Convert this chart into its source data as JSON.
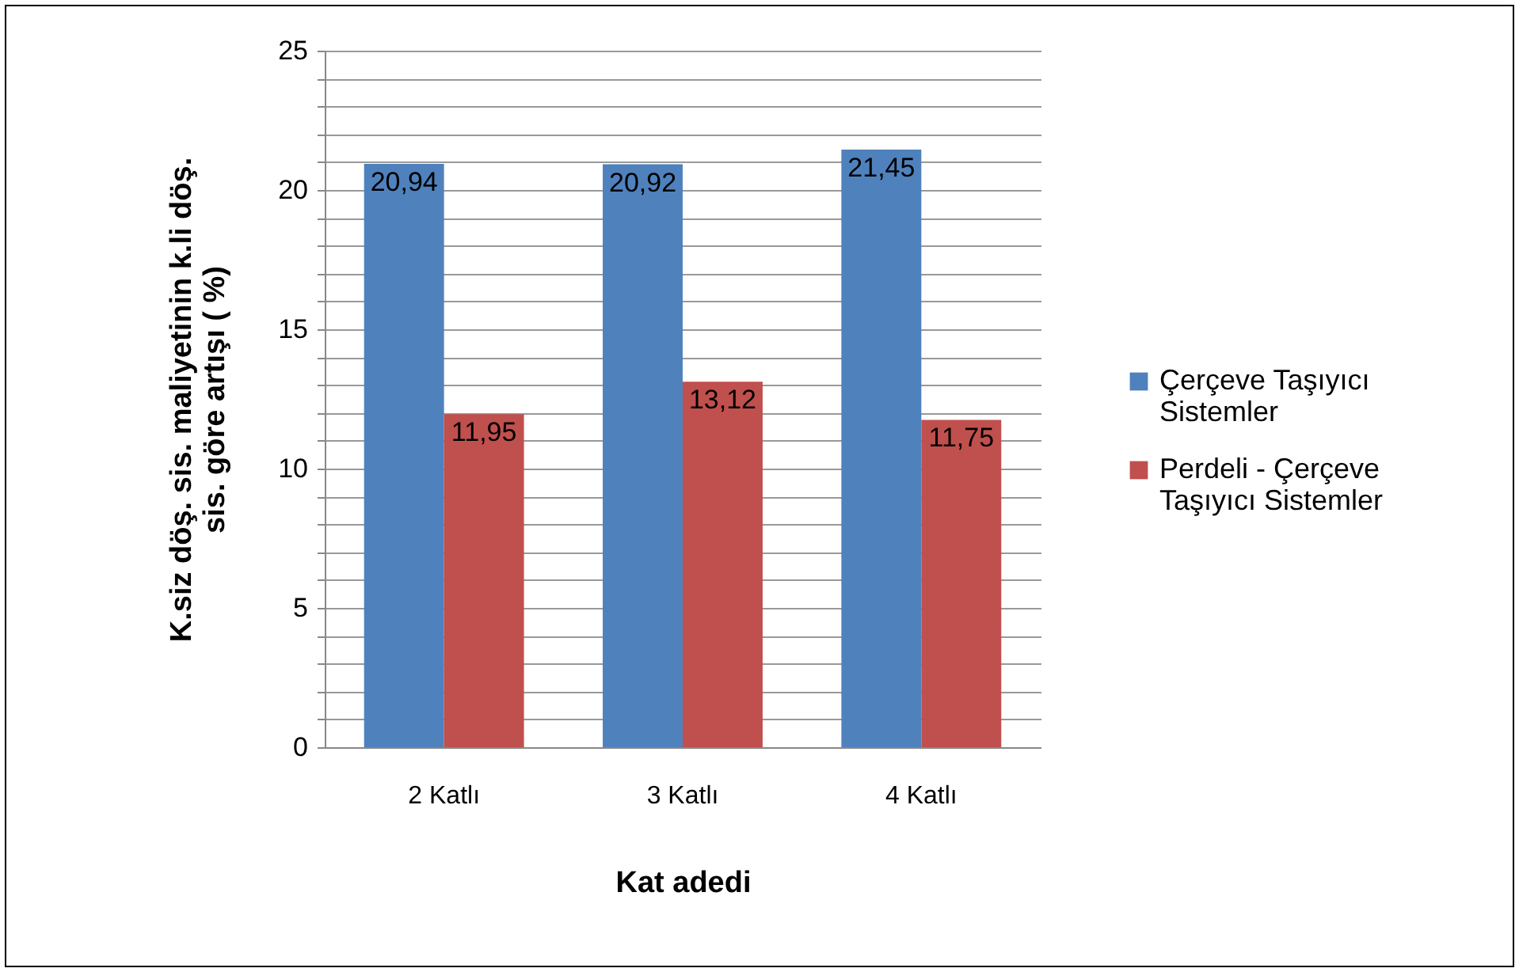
{
  "chart_data": {
    "type": "bar",
    "xlabel": "Kat adedi",
    "ylabel": "K.siz döş. sis. maliyetinin k.li döş. sis. göre artışı ( %)",
    "categories": [
      "2 Katlı",
      "3 Katlı",
      "4 Katlı"
    ],
    "series": [
      {
        "name": "Çerçeve Taşıyıcı Sistemler",
        "color": "#4f81bd",
        "values": [
          20.94,
          20.92,
          21.45
        ],
        "value_labels": [
          "20,94",
          "20,92",
          "21,45"
        ]
      },
      {
        "name": "Perdeli - Çerçeve Taşıyıcı Sistemler",
        "color": "#c0504d",
        "values": [
          11.95,
          13.12,
          11.75
        ],
        "value_labels": [
          "11,95",
          "13,12",
          "11,75"
        ]
      }
    ],
    "ylim": [
      0,
      25
    ],
    "yticks": [
      0,
      {
        "value": 1,
        "label": null
      },
      {
        "value": 2,
        "label": null
      },
      {
        "value": 3,
        "label": null
      },
      {
        "value": 4,
        "label": null
      },
      5,
      {
        "value": 6,
        "label": null
      },
      {
        "value": 7,
        "label": null
      },
      {
        "value": 8,
        "label": null
      },
      {
        "value": 9,
        "label": null
      },
      10,
      {
        "value": 11,
        "label": null
      },
      {
        "value": 12,
        "label": null
      },
      {
        "value": 13,
        "label": null
      },
      {
        "value": 14,
        "label": null
      },
      15,
      {
        "value": 16,
        "label": null
      },
      {
        "value": 17,
        "label": null
      },
      {
        "value": 18,
        "label": null
      },
      {
        "value": 19,
        "label": null
      },
      20,
      {
        "value": 21,
        "label": null
      },
      {
        "value": 22,
        "label": null
      },
      {
        "value": 23,
        "label": null
      },
      {
        "value": 24,
        "label": null
      },
      25
    ],
    "grid": "y",
    "legend": "right"
  }
}
